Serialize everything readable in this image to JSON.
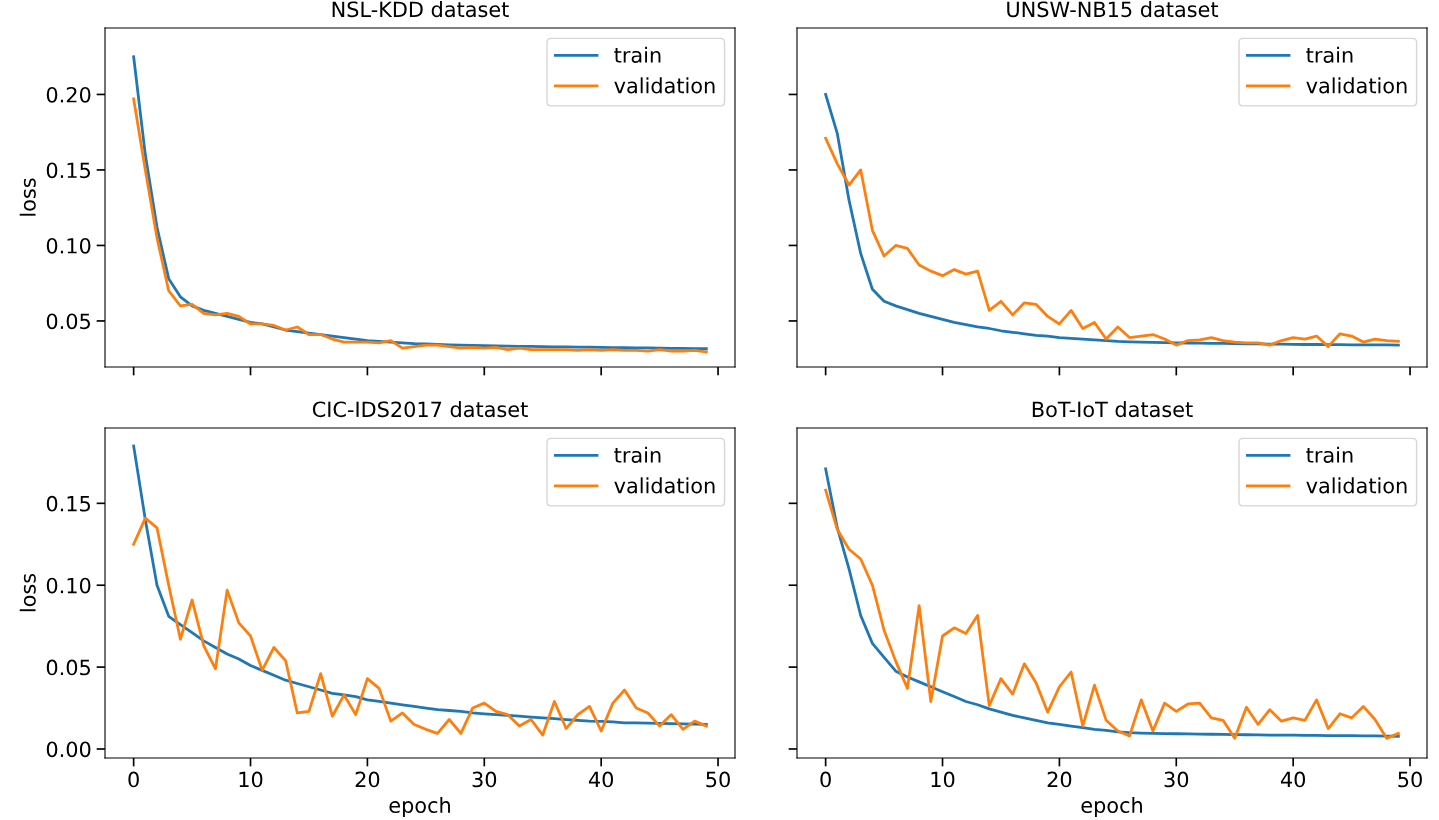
{
  "chart_data": [
    {
      "type": "line",
      "title": "NSL-KDD dataset",
      "ylabel": "loss",
      "legend": "top right",
      "grid": false,
      "tick_labels": "y",
      "x": [
        0,
        1,
        2,
        3,
        4,
        5,
        6,
        7,
        8,
        9,
        10,
        11,
        12,
        13,
        14,
        15,
        16,
        17,
        18,
        19,
        20,
        21,
        22,
        23,
        24,
        25,
        26,
        27,
        28,
        29,
        30,
        31,
        32,
        33,
        34,
        35,
        36,
        37,
        38,
        39,
        40,
        41,
        42,
        43,
        44,
        45,
        46,
        47,
        48,
        49
      ],
      "xlim": [
        -2.45,
        51.45
      ],
      "xticks": [
        0,
        10,
        20,
        30,
        40,
        50
      ],
      "ylim": [
        0.0195,
        0.244
      ],
      "yticks": [
        0.05,
        {
          "value": 0.1,
          "label": "0.10"
        },
        0.15,
        {
          "value": 0.2,
          "label": "0.20"
        }
      ],
      "series": [
        {
          "name": "train",
          "color": "#1f77b4",
          "values": [
            0.225,
            0.16,
            0.112,
            0.078,
            0.066,
            0.06,
            0.057,
            0.055,
            0.053,
            0.051,
            0.049,
            0.048,
            0.046,
            0.044,
            0.043,
            0.042,
            0.041,
            0.04,
            0.039,
            0.038,
            0.037,
            0.0365,
            0.036,
            0.0355,
            0.035,
            0.0348,
            0.0345,
            0.0342,
            0.034,
            0.0338,
            0.0336,
            0.0334,
            0.0333,
            0.0332,
            0.0331,
            0.033,
            0.0329,
            0.0328,
            0.0327,
            0.0326,
            0.0325,
            0.0324,
            0.0323,
            0.0322,
            0.0321,
            0.032,
            0.0319,
            0.0318,
            0.0317,
            0.0316
          ]
        },
        {
          "name": "validation",
          "color": "#ff7f0e",
          "values": [
            0.197,
            0.15,
            0.105,
            0.07,
            0.06,
            0.061,
            0.055,
            0.054,
            0.055,
            0.053,
            0.048,
            0.048,
            0.047,
            0.044,
            0.046,
            0.041,
            0.041,
            0.038,
            0.036,
            0.036,
            0.036,
            0.0355,
            0.037,
            0.032,
            0.033,
            0.034,
            0.034,
            0.033,
            0.032,
            0.0325,
            0.032,
            0.0325,
            0.031,
            0.032,
            0.031,
            0.031,
            0.031,
            0.031,
            0.0305,
            0.031,
            0.0305,
            0.031,
            0.0305,
            0.0305,
            0.03,
            0.031,
            0.03,
            0.03,
            0.0305,
            0.0295
          ]
        }
      ]
    },
    {
      "type": "line",
      "title": "UNSW-NB15 dataset",
      "legend": "top right",
      "grid": false,
      "tick_labels": false,
      "x": [
        0,
        1,
        2,
        3,
        4,
        5,
        6,
        7,
        8,
        9,
        10,
        11,
        12,
        13,
        14,
        15,
        16,
        17,
        18,
        19,
        20,
        21,
        22,
        23,
        24,
        25,
        26,
        27,
        28,
        29,
        30,
        31,
        32,
        33,
        34,
        35,
        36,
        37,
        38,
        39,
        40,
        41,
        42,
        43,
        44,
        45,
        46,
        47,
        48,
        49
      ],
      "xlim": [
        -2.45,
        51.45
      ],
      "xticks": [
        0,
        10,
        20,
        30,
        40,
        50
      ],
      "ylim": [
        0.0195,
        0.244
      ],
      "yticks": [
        0.05,
        0.1,
        0.15,
        0.2
      ],
      "series": [
        {
          "name": "train",
          "color": "#1f77b4",
          "values": [
            0.2,
            0.174,
            0.13,
            0.0947,
            0.071,
            0.063,
            0.06,
            0.0575,
            0.055,
            0.053,
            0.051,
            0.049,
            0.0475,
            0.046,
            0.045,
            0.0435,
            0.0425,
            0.0415,
            0.0405,
            0.04,
            0.039,
            0.0385,
            0.038,
            0.0375,
            0.037,
            0.0365,
            0.0362,
            0.036,
            0.0358,
            0.0356,
            0.0355,
            0.0354,
            0.0353,
            0.0352,
            0.0351,
            0.035,
            0.0349,
            0.0348,
            0.0347,
            0.0346,
            0.0345,
            0.0344,
            0.0344,
            0.0343,
            0.0343,
            0.0342,
            0.0342,
            0.0341,
            0.0341,
            0.034
          ]
        },
        {
          "name": "validation",
          "color": "#ff7f0e",
          "values": [
            0.171,
            0.154,
            0.14,
            0.15,
            0.11,
            0.093,
            0.1,
            0.098,
            0.087,
            0.083,
            0.08,
            0.084,
            0.081,
            0.083,
            0.057,
            0.063,
            0.054,
            0.062,
            0.061,
            0.053,
            0.048,
            0.057,
            0.045,
            0.049,
            0.038,
            0.046,
            0.039,
            0.04,
            0.041,
            0.038,
            0.034,
            0.037,
            0.0375,
            0.039,
            0.037,
            0.036,
            0.0355,
            0.0355,
            0.034,
            0.037,
            0.039,
            0.038,
            0.04,
            0.033,
            0.0415,
            0.04,
            0.036,
            0.038,
            0.037,
            0.0365
          ]
        }
      ]
    },
    {
      "type": "line",
      "title": "CIC-IDS2017 dataset",
      "ylabel": "loss",
      "xlabel": "epoch",
      "legend": "top right",
      "grid": false,
      "x": [
        0,
        1,
        2,
        3,
        4,
        5,
        6,
        7,
        8,
        9,
        10,
        11,
        12,
        13,
        14,
        15,
        16,
        17,
        18,
        19,
        20,
        21,
        22,
        23,
        24,
        25,
        26,
        27,
        28,
        29,
        30,
        31,
        32,
        33,
        34,
        35,
        36,
        37,
        38,
        39,
        40,
        41,
        42,
        43,
        44,
        45,
        46,
        47,
        48,
        49
      ],
      "xlim": [
        -2.45,
        51.45
      ],
      "xticks": [
        0,
        10,
        20,
        30,
        40,
        50
      ],
      "ylim": [
        -0.0055,
        0.196
      ],
      "yticks": [
        {
          "value": 0,
          "label": "0.00"
        },
        0.05,
        {
          "value": 0.1,
          "label": "0.10"
        },
        0.15
      ],
      "series": [
        {
          "name": "train",
          "color": "#1f77b4",
          "values": [
            0.185,
            0.14,
            0.1,
            0.081,
            0.076,
            0.071,
            0.066,
            0.062,
            0.058,
            0.055,
            0.051,
            0.048,
            0.045,
            0.042,
            0.04,
            0.038,
            0.036,
            0.034,
            0.033,
            0.032,
            0.03,
            0.029,
            0.028,
            0.027,
            0.026,
            0.025,
            0.024,
            0.0235,
            0.023,
            0.022,
            0.0215,
            0.021,
            0.0205,
            0.02,
            0.0195,
            0.019,
            0.0185,
            0.018,
            0.0175,
            0.017,
            0.0168,
            0.0165,
            0.016,
            0.016,
            0.0158,
            0.0156,
            0.0155,
            0.0154,
            0.0152,
            0.015
          ]
        },
        {
          "name": "validation",
          "color": "#ff7f0e",
          "values": [
            0.125,
            0.141,
            0.135,
            0.1,
            0.067,
            0.091,
            0.063,
            0.049,
            0.097,
            0.077,
            0.069,
            0.048,
            0.062,
            0.054,
            0.022,
            0.023,
            0.046,
            0.02,
            0.033,
            0.021,
            0.043,
            0.037,
            0.017,
            0.022,
            0.015,
            0.012,
            0.0095,
            0.018,
            0.0095,
            0.025,
            0.028,
            0.023,
            0.021,
            0.014,
            0.018,
            0.0085,
            0.029,
            0.0125,
            0.021,
            0.026,
            0.011,
            0.028,
            0.036,
            0.025,
            0.022,
            0.014,
            0.021,
            0.012,
            0.017,
            0.014
          ]
        }
      ]
    },
    {
      "type": "line",
      "title": "BoT-IoT dataset",
      "xlabel": "epoch",
      "legend": "top right",
      "grid": false,
      "tick_labels": "x",
      "x": [
        0,
        1,
        2,
        3,
        4,
        5,
        6,
        7,
        8,
        9,
        10,
        11,
        12,
        13,
        14,
        15,
        16,
        17,
        18,
        19,
        20,
        21,
        22,
        23,
        24,
        25,
        26,
        27,
        28,
        29,
        30,
        31,
        32,
        33,
        34,
        35,
        36,
        37,
        38,
        39,
        40,
        41,
        42,
        43,
        44,
        45,
        46,
        47,
        48,
        49
      ],
      "xlim": [
        -2.45,
        51.45
      ],
      "xticks": [
        0,
        10,
        20,
        30,
        40,
        50
      ],
      "ylim": [
        -0.0055,
        0.196
      ],
      "yticks": [
        0,
        0.05,
        0.1,
        0.15
      ],
      "series": [
        {
          "name": "train",
          "color": "#1f77b4",
          "values": [
            0.171,
            0.135,
            0.11,
            0.0815,
            0.0645,
            0.056,
            0.0475,
            0.044,
            0.041,
            0.038,
            0.035,
            0.032,
            0.029,
            0.027,
            0.0245,
            0.0225,
            0.0205,
            0.019,
            0.0175,
            0.016,
            0.015,
            0.014,
            0.013,
            0.012,
            0.0113,
            0.0105,
            0.01,
            0.0097,
            0.0095,
            0.0094,
            0.0093,
            0.0092,
            0.0091,
            0.009,
            0.0089,
            0.0088,
            0.0087,
            0.0086,
            0.0085,
            0.0085,
            0.0084,
            0.0083,
            0.0083,
            0.0082,
            0.0081,
            0.0081,
            0.008,
            0.008,
            0.0079,
            0.0078
          ]
        },
        {
          "name": "validation",
          "color": "#ff7f0e",
          "values": [
            0.158,
            0.134,
            0.122,
            0.116,
            0.1,
            0.0725,
            0.0535,
            0.037,
            0.0875,
            0.029,
            0.069,
            0.074,
            0.0705,
            0.0815,
            0.0265,
            0.043,
            0.0335,
            0.052,
            0.0405,
            0.0225,
            0.038,
            0.047,
            0.014,
            0.039,
            0.0175,
            0.011,
            0.008,
            0.03,
            0.011,
            0.028,
            0.023,
            0.0275,
            0.028,
            0.019,
            0.0175,
            0.0065,
            0.0255,
            0.015,
            0.024,
            0.017,
            0.019,
            0.0175,
            0.03,
            0.0125,
            0.0215,
            0.019,
            0.026,
            0.018,
            0.0065,
            0.0095
          ]
        }
      ]
    }
  ]
}
